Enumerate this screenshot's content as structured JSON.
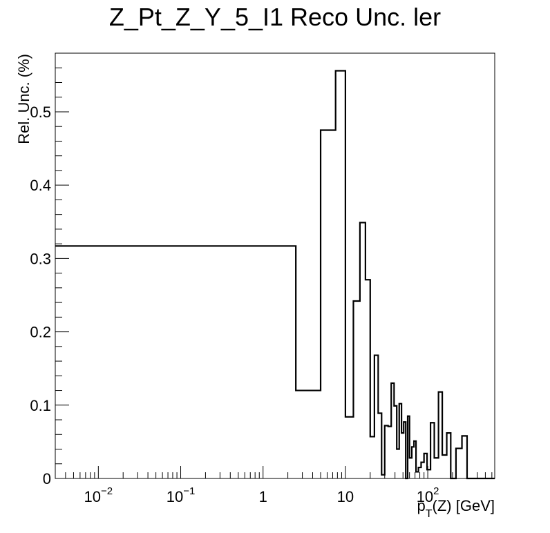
{
  "chart_data": {
    "type": "step",
    "title": "Z_Pt_Z_Y_5_I1 Reco Unc. ler",
    "xlabel_main": "p",
    "xlabel_sub": "T",
    "xlabel_rest": "(Z) [GeV]",
    "ylabel": "Rel. Unc. (%)",
    "xscale": "log",
    "xlim": [
      0.003,
      650
    ],
    "ylim": [
      0,
      0.58
    ],
    "grid": false,
    "legend": "none",
    "line_color": "#000000",
    "x_tick_labels": [
      {
        "value": 0.01,
        "base": "10",
        "exp": "−2"
      },
      {
        "value": 0.1,
        "base": "10",
        "exp": "−1"
      },
      {
        "value": 1,
        "base": "1",
        "exp": ""
      },
      {
        "value": 10,
        "base": "10",
        "exp": ""
      },
      {
        "value": 100,
        "base": "10",
        "exp": "2"
      }
    ],
    "y_ticks": [
      0,
      0.1,
      0.2,
      0.3,
      0.4,
      0.5
    ],
    "y_tick_labels": [
      "0",
      "0.1",
      "0.2",
      "0.3",
      "0.4",
      "0.5"
    ],
    "bins": [
      {
        "lo": 0.003,
        "hi": 2.5,
        "y": 0.317
      },
      {
        "lo": 2.5,
        "hi": 5.0,
        "y": 0.12
      },
      {
        "lo": 5.0,
        "hi": 7.6,
        "y": 0.475
      },
      {
        "lo": 7.6,
        "hi": 10.0,
        "y": 0.556
      },
      {
        "lo": 10.0,
        "hi": 12.5,
        "y": 0.084
      },
      {
        "lo": 12.5,
        "hi": 15.0,
        "y": 0.242
      },
      {
        "lo": 15.0,
        "hi": 17.5,
        "y": 0.349
      },
      {
        "lo": 17.5,
        "hi": 20.0,
        "y": 0.271
      },
      {
        "lo": 20.0,
        "hi": 22.5,
        "y": 0.057
      },
      {
        "lo": 22.5,
        "hi": 25.0,
        "y": 0.168
      },
      {
        "lo": 25.0,
        "hi": 27.5,
        "y": 0.089
      },
      {
        "lo": 27.5,
        "hi": 30.0,
        "y": 0.005
      },
      {
        "lo": 30.0,
        "hi": 33.0,
        "y": 0.072
      },
      {
        "lo": 33.0,
        "hi": 36.0,
        "y": 0.071
      },
      {
        "lo": 36.0,
        "hi": 39.0,
        "y": 0.13
      },
      {
        "lo": 39.0,
        "hi": 42.0,
        "y": 0.099
      },
      {
        "lo": 42.0,
        "hi": 45.0,
        "y": 0.04
      },
      {
        "lo": 45.0,
        "hi": 48.0,
        "y": 0.102
      },
      {
        "lo": 48.0,
        "hi": 51.0,
        "y": 0.062
      },
      {
        "lo": 51.0,
        "hi": 54.0,
        "y": 0.077
      },
      {
        "lo": 54.0,
        "hi": 57.0,
        "y": 0.0
      },
      {
        "lo": 57.0,
        "hi": 60.0,
        "y": 0.085
      },
      {
        "lo": 60.0,
        "hi": 64.0,
        "y": 0.028
      },
      {
        "lo": 64.0,
        "hi": 68.0,
        "y": 0.043
      },
      {
        "lo": 68.0,
        "hi": 72.0,
        "y": 0.051
      },
      {
        "lo": 72.0,
        "hi": 77.0,
        "y": 0.009
      },
      {
        "lo": 77.0,
        "hi": 83.0,
        "y": 0.015
      },
      {
        "lo": 83.0,
        "hi": 90.0,
        "y": 0.022
      },
      {
        "lo": 90.0,
        "hi": 98.0,
        "y": 0.034
      },
      {
        "lo": 98.0,
        "hi": 108.0,
        "y": 0.012
      },
      {
        "lo": 108.0,
        "hi": 120.0,
        "y": 0.076
      },
      {
        "lo": 120.0,
        "hi": 135.0,
        "y": 0.028
      },
      {
        "lo": 135.0,
        "hi": 150.0,
        "y": 0.118
      },
      {
        "lo": 150.0,
        "hi": 170.0,
        "y": 0.032
      },
      {
        "lo": 170.0,
        "hi": 190.0,
        "y": 0.062
      },
      {
        "lo": 190.0,
        "hi": 220.0,
        "y": 0.0
      },
      {
        "lo": 220.0,
        "hi": 260.0,
        "y": 0.041
      },
      {
        "lo": 260.0,
        "hi": 300.0,
        "y": 0.058
      },
      {
        "lo": 300.0,
        "hi": 650.0,
        "y": 0.0
      }
    ]
  }
}
